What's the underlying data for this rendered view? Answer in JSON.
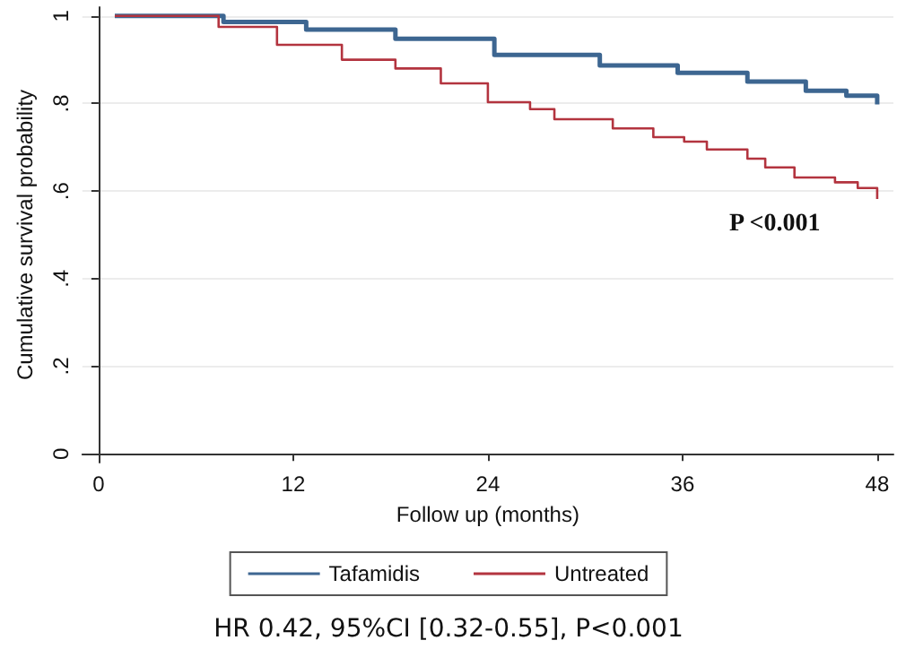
{
  "chart_data": {
    "type": "step",
    "xlabel": "Follow up (months)",
    "ylabel": "Cumulative survival probability",
    "xlim": [
      -1,
      49
    ],
    "xticks": [
      0,
      12,
      24,
      36,
      48
    ],
    "ylim": [
      -0.02,
      1.02
    ],
    "yticks": [
      {
        "value": 0,
        "label": "0"
      },
      {
        "value": 0.2,
        "label": ".2"
      },
      {
        "value": 0.4,
        "label": ".4"
      },
      {
        "value": 0.6,
        "label": ".6"
      },
      {
        "value": 0.8,
        "label": ".8"
      },
      {
        "value": 1,
        "label": "1"
      }
    ],
    "grid": "y",
    "legend": "bottom",
    "marker": "none",
    "line_style": "solid",
    "annotations": [
      "P <0.001",
      "HR 0.42, 95%CI [0.32-0.55], P<0.001"
    ],
    "series": [
      {
        "name": "Tafamidis",
        "color": "#3d6691",
        "x": [
          1,
          7.7,
          12.8,
          18.3,
          24.4,
          30.9,
          35.7,
          40,
          43.6,
          46.1,
          48
        ],
        "values": [
          1.0,
          0.986,
          0.969,
          0.948,
          0.911,
          0.887,
          0.87,
          0.85,
          0.829,
          0.818,
          0.798
        ]
      },
      {
        "name": "Untreated",
        "color": "#b3343f",
        "x": [
          1,
          7.4,
          11,
          15,
          18.3,
          21.1,
          24,
          26.6,
          28.1,
          31.7,
          34.2,
          36.1,
          37.5,
          40,
          41.1,
          42.9,
          45.4,
          46.8,
          48
        ],
        "values": [
          1.0,
          0.975,
          0.934,
          0.9,
          0.88,
          0.846,
          0.803,
          0.787,
          0.764,
          0.743,
          0.723,
          0.713,
          0.695,
          0.674,
          0.654,
          0.631,
          0.62,
          0.607,
          0.582
        ]
      }
    ]
  }
}
